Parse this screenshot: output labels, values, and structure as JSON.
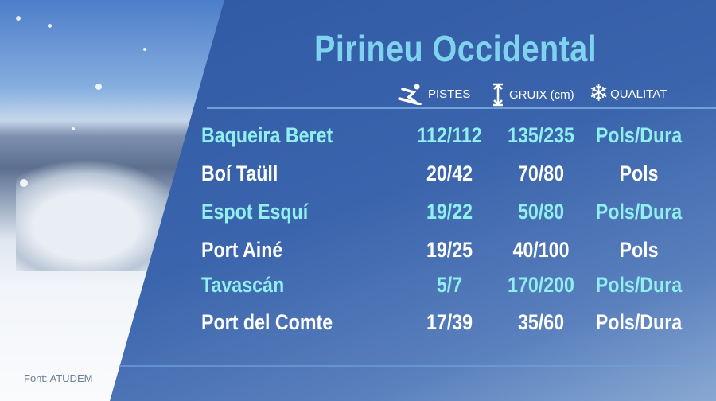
{
  "title": "Pirineu Occidental",
  "headers": {
    "pistes": "PISTES",
    "gruix": "GRUIX (cm)",
    "qualitat": "QUALITAT"
  },
  "icons": {
    "pistes": "skier-icon",
    "gruix": "height-arrow-icon",
    "qualitat": "snowflake-icon"
  },
  "colors": {
    "highlight": "#8ff0ef",
    "normal": "#ffffff",
    "title": "#7fd3ee"
  },
  "rows": [
    {
      "name": "Baqueira Beret",
      "pistes": "112/112",
      "gruix": "135/235",
      "qualitat": "Pols/Dura"
    },
    {
      "name": "Boí Taüll",
      "pistes": "20/42",
      "gruix": "70/80",
      "qualitat": "Pols"
    },
    {
      "name": "Espot Esquí",
      "pistes": "19/22",
      "gruix": "50/80",
      "qualitat": "Pols/Dura"
    },
    {
      "name": "Port Ainé",
      "pistes": "19/25",
      "gruix": "40/100",
      "qualitat": "Pols"
    },
    {
      "name": "Tavascán",
      "pistes": "5/7",
      "gruix": "170/200",
      "qualitat": "Pols/Dura"
    },
    {
      "name": "Port del Comte",
      "pistes": "17/39",
      "gruix": "35/60",
      "qualitat": "Pols/Dura"
    }
  ],
  "source": "Font: ATUDEM"
}
